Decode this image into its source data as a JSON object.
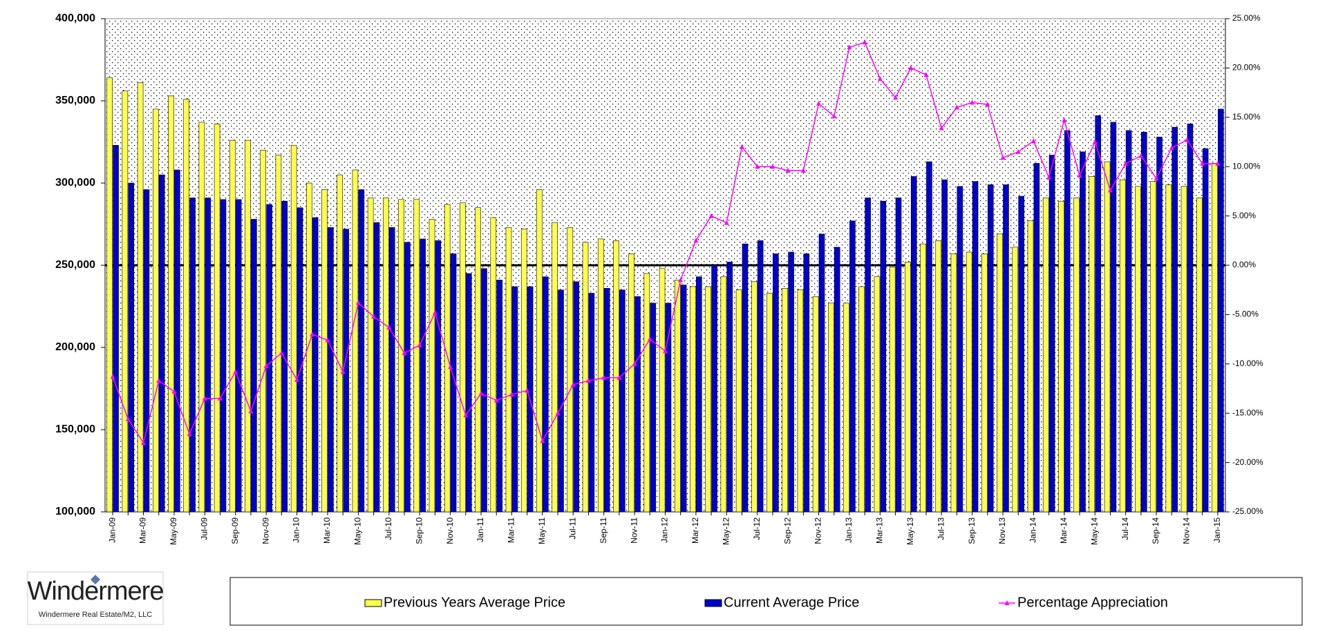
{
  "chart_data": {
    "type": "bar",
    "categories": [
      "Jan-09",
      null,
      "Mar-09",
      null,
      "May-09",
      null,
      "Jul-09",
      null,
      "Sep-09",
      null,
      "Nov-09",
      null,
      "Jan-10",
      null,
      "Mar-10",
      null,
      "May-10",
      null,
      "Jul-10",
      null,
      "Sep-10",
      null,
      "Nov-10",
      null,
      "Jan-11",
      null,
      "Mar-11",
      null,
      "May-11",
      null,
      "Jul-11",
      null,
      "Sep-11",
      null,
      "Nov-11",
      null,
      "Jan-12",
      null,
      "Mar-12",
      null,
      "May-12",
      null,
      "Jul-12",
      null,
      "Sep-12",
      null,
      "Nov-12",
      null,
      "Jan-13",
      null,
      "Mar-13",
      null,
      "May-13",
      null,
      "Jul-13",
      null,
      "Sep-13",
      null,
      "Nov-13",
      null,
      "Jan-14",
      null,
      "Mar-14",
      null,
      "May-14",
      null,
      "Jul-14",
      null,
      "Sep-14",
      null,
      "Nov-14",
      null,
      "Jan-15"
    ],
    "series": [
      {
        "name": "Previous Years Average Price",
        "type": "bar",
        "color": "#ffff4d",
        "values": [
          364000,
          356000,
          361000,
          345000,
          353000,
          351000,
          337000,
          336000,
          326000,
          326000,
          320000,
          317000,
          323000,
          300000,
          296000,
          305000,
          308000,
          291000,
          291000,
          290000,
          290000,
          278000,
          287000,
          288000,
          285000,
          279000,
          273000,
          272000,
          296000,
          276000,
          273000,
          264000,
          266000,
          265000,
          257000,
          245000,
          248000,
          241000,
          237000,
          237000,
          243000,
          235000,
          240000,
          233000,
          236000,
          235000,
          231000,
          227000,
          227000,
          237000,
          243000,
          249000,
          252000,
          263000,
          265000,
          257000,
          258000,
          257000,
          269000,
          261000,
          277000,
          291000,
          289000,
          291000,
          304000,
          313000,
          302000,
          298000,
          301000,
          299000,
          298000,
          291000,
          312000
        ]
      },
      {
        "name": "Current Average Price",
        "type": "bar",
        "color": "#0000cc",
        "values": [
          323000,
          300000,
          296000,
          305000,
          308000,
          291000,
          291000,
          290000,
          290000,
          278000,
          287000,
          289000,
          285000,
          279000,
          273000,
          272000,
          296000,
          276000,
          273000,
          264000,
          266000,
          265000,
          257000,
          245000,
          248000,
          241000,
          237000,
          237000,
          243000,
          235000,
          240000,
          233000,
          236000,
          235000,
          231000,
          227000,
          227000,
          238000,
          243000,
          250000,
          252000,
          263000,
          265000,
          257000,
          258000,
          257000,
          269000,
          261000,
          277000,
          291000,
          289000,
          291000,
          304000,
          313000,
          302000,
          298000,
          301000,
          299000,
          299000,
          292000,
          312000,
          317000,
          332000,
          319000,
          341000,
          337000,
          332000,
          331000,
          328000,
          334000,
          336000,
          321000,
          345000
        ]
      },
      {
        "name": "Percentage Appreciation",
        "type": "line",
        "axis": "y2",
        "color": "#ff00ff",
        "values": [
          -11.3,
          -15.6,
          -18.0,
          -11.7,
          -12.8,
          -17.1,
          -13.5,
          -13.5,
          -10.8,
          -14.8,
          -10.2,
          -8.9,
          -11.6,
          -7.0,
          -7.6,
          -10.8,
          -3.8,
          -5.2,
          -6.3,
          -8.9,
          -8.1,
          -4.8,
          -10.3,
          -15.2,
          -13.0,
          -13.7,
          -13.1,
          -12.7,
          -17.8,
          -15.0,
          -12.1,
          -11.7,
          -11.4,
          -11.4,
          -10.0,
          -7.5,
          -8.7,
          -1.5,
          2.5,
          5.0,
          4.3,
          12.0,
          10.0,
          10.0,
          9.6,
          9.6,
          16.4,
          15.1,
          22.1,
          22.6,
          18.9,
          17.0,
          20.0,
          19.3,
          13.9,
          16.0,
          16.5,
          16.3,
          10.9,
          11.5,
          12.6,
          8.9,
          14.7,
          9.1,
          12.5,
          7.6,
          10.3,
          11.1,
          8.8,
          11.9,
          12.7,
          10.3,
          10.3
        ]
      }
    ],
    "ylim": [
      100000,
      400000
    ],
    "yticks": [
      {
        "value": 100000,
        "label": "100,000"
      },
      {
        "value": 150000,
        "label": "150,000"
      },
      {
        "value": 200000,
        "label": "200,000"
      },
      {
        "value": 250000,
        "label": "250,000"
      },
      {
        "value": 300000,
        "label": "300,000"
      },
      {
        "value": 350000,
        "label": "350,000"
      },
      {
        "value": 400000,
        "label": "400,000"
      }
    ],
    "y2lim": [
      -25,
      25
    ],
    "y2ticks": [
      {
        "value": -25,
        "label": "-25.00%"
      },
      {
        "value": -20,
        "label": "-20.00%"
      },
      {
        "value": -15,
        "label": "-15.00%"
      },
      {
        "value": -10,
        "label": "-10.00%"
      },
      {
        "value": -5,
        "label": "-5.00%"
      },
      {
        "value": 0,
        "label": "0.00%"
      },
      {
        "value": 5,
        "label": "5.00%"
      },
      {
        "value": 10,
        "label": "10.00%"
      },
      {
        "value": 15,
        "label": "15.00%"
      },
      {
        "value": 20,
        "label": "20.00%"
      },
      {
        "value": 25,
        "label": "25.00%"
      }
    ],
    "legend": "bottom",
    "logo": {
      "name": "Windermere",
      "subtitle": "Windermere Real Estate/M2, LLC"
    }
  }
}
